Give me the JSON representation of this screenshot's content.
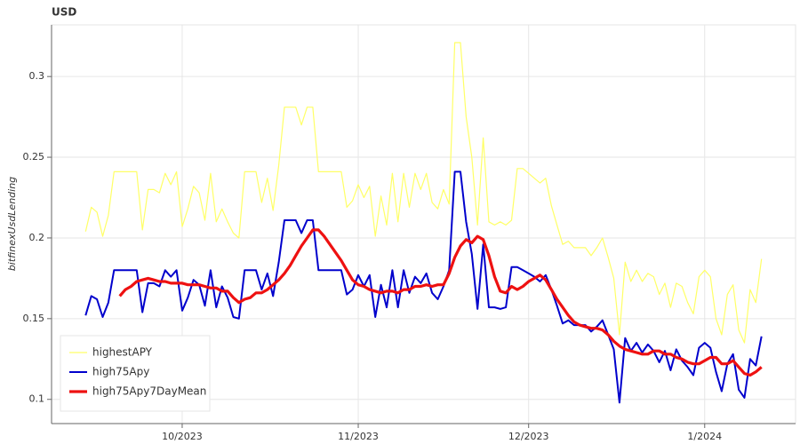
{
  "chart_data": {
    "type": "line",
    "title": "USD",
    "y_label": "bitfinexUsdLending",
    "x": [
      "2023-09-14",
      "2023-09-15",
      "2023-09-16",
      "2023-09-17",
      "2023-09-18",
      "2023-09-19",
      "2023-09-20",
      "2023-09-21",
      "2023-09-22",
      "2023-09-23",
      "2023-09-24",
      "2023-09-25",
      "2023-09-26",
      "2023-09-27",
      "2023-09-28",
      "2023-09-29",
      "2023-09-30",
      "2023-10-01",
      "2023-10-02",
      "2023-10-03",
      "2023-10-04",
      "2023-10-05",
      "2023-10-06",
      "2023-10-07",
      "2023-10-08",
      "2023-10-09",
      "2023-10-10",
      "2023-10-11",
      "2023-10-12",
      "2023-10-13",
      "2023-10-14",
      "2023-10-15",
      "2023-10-16",
      "2023-10-17",
      "2023-10-18",
      "2023-10-19",
      "2023-10-20",
      "2023-10-21",
      "2023-10-22",
      "2023-10-23",
      "2023-10-24",
      "2023-10-25",
      "2023-10-26",
      "2023-10-27",
      "2023-10-28",
      "2023-10-29",
      "2023-10-30",
      "2023-10-31",
      "2023-11-01",
      "2023-11-02",
      "2023-11-03",
      "2023-11-04",
      "2023-11-05",
      "2023-11-06",
      "2023-11-07",
      "2023-11-08",
      "2023-11-09",
      "2023-11-10",
      "2023-11-11",
      "2023-11-12",
      "2023-11-13",
      "2023-11-14",
      "2023-11-15",
      "2023-11-16",
      "2023-11-17",
      "2023-11-18",
      "2023-11-19",
      "2023-11-20",
      "2023-11-21",
      "2023-11-22",
      "2023-11-23",
      "2023-11-24",
      "2023-11-25",
      "2023-11-26",
      "2023-11-27",
      "2023-11-28",
      "2023-11-29",
      "2023-11-30",
      "2023-12-01",
      "2023-12-02",
      "2023-12-03",
      "2023-12-04",
      "2023-12-05",
      "2023-12-06",
      "2023-12-07",
      "2023-12-08",
      "2023-12-09",
      "2023-12-10",
      "2023-12-11",
      "2023-12-12",
      "2023-12-13",
      "2023-12-14",
      "2023-12-15",
      "2023-12-16",
      "2023-12-17",
      "2023-12-18",
      "2023-12-19",
      "2023-12-20",
      "2023-12-21",
      "2023-12-22",
      "2023-12-23",
      "2023-12-24",
      "2023-12-25",
      "2023-12-26",
      "2023-12-27",
      "2023-12-28",
      "2023-12-29",
      "2023-12-30",
      "2023-12-31",
      "2024-01-01",
      "2024-01-02",
      "2024-01-03",
      "2024-01-04",
      "2024-01-05",
      "2024-01-06",
      "2024-01-07",
      "2024-01-08",
      "2024-01-09",
      "2024-01-10",
      "2024-01-11"
    ],
    "series": [
      {
        "name": "highestAPY",
        "color": "#ffff66",
        "width": 1.2,
        "values": [
          0.204,
          0.219,
          0.216,
          0.201,
          0.214,
          0.241,
          0.241,
          0.241,
          0.241,
          0.241,
          0.205,
          0.23,
          0.23,
          0.228,
          0.24,
          0.233,
          0.241,
          0.207,
          0.218,
          0.232,
          0.228,
          0.211,
          0.24,
          0.21,
          0.218,
          0.21,
          0.203,
          0.2,
          0.241,
          0.241,
          0.241,
          0.222,
          0.237,
          0.217,
          0.245,
          0.281,
          0.281,
          0.281,
          0.27,
          0.281,
          0.281,
          0.241,
          0.241,
          0.241,
          0.241,
          0.241,
          0.219,
          0.223,
          0.233,
          0.225,
          0.232,
          0.201,
          0.226,
          0.208,
          0.24,
          0.21,
          0.24,
          0.219,
          0.24,
          0.23,
          0.24,
          0.222,
          0.218,
          0.23,
          0.221,
          0.321,
          0.321,
          0.275,
          0.25,
          0.208,
          0.262,
          0.21,
          0.208,
          0.21,
          0.208,
          0.211,
          0.243,
          0.243,
          0.24,
          0.237,
          0.234,
          0.237,
          0.22,
          0.208,
          0.196,
          0.198,
          0.194,
          0.194,
          0.194,
          0.189,
          0.194,
          0.2,
          0.188,
          0.175,
          0.14,
          0.185,
          0.173,
          0.18,
          0.173,
          0.178,
          0.176,
          0.165,
          0.172,
          0.157,
          0.172,
          0.17,
          0.16,
          0.153,
          0.176,
          0.18,
          0.176,
          0.15,
          0.14,
          0.165,
          0.171,
          0.143,
          0.135,
          0.168,
          0.16,
          0.187
        ]
      },
      {
        "name": "high75Apy",
        "color": "#0000cc",
        "width": 2,
        "values": [
          0.152,
          0.164,
          0.162,
          0.151,
          0.16,
          0.18,
          0.18,
          0.18,
          0.18,
          0.18,
          0.154,
          0.172,
          0.172,
          0.17,
          0.18,
          0.176,
          0.18,
          0.155,
          0.163,
          0.174,
          0.171,
          0.158,
          0.18,
          0.157,
          0.17,
          0.163,
          0.151,
          0.15,
          0.18,
          0.18,
          0.18,
          0.168,
          0.178,
          0.164,
          0.185,
          0.211,
          0.211,
          0.211,
          0.203,
          0.211,
          0.211,
          0.18,
          0.18,
          0.18,
          0.18,
          0.18,
          0.165,
          0.168,
          0.177,
          0.17,
          0.177,
          0.151,
          0.171,
          0.157,
          0.18,
          0.157,
          0.18,
          0.166,
          0.176,
          0.172,
          0.178,
          0.166,
          0.162,
          0.17,
          0.18,
          0.241,
          0.241,
          0.21,
          0.19,
          0.156,
          0.196,
          0.157,
          0.157,
          0.156,
          0.157,
          0.182,
          0.182,
          0.18,
          0.178,
          0.176,
          0.173,
          0.177,
          0.168,
          0.158,
          0.147,
          0.149,
          0.146,
          0.146,
          0.146,
          0.142,
          0.145,
          0.149,
          0.14,
          0.131,
          0.098,
          0.138,
          0.13,
          0.135,
          0.129,
          0.134,
          0.13,
          0.123,
          0.13,
          0.118,
          0.131,
          0.124,
          0.12,
          0.115,
          0.132,
          0.135,
          0.132,
          0.117,
          0.105,
          0.122,
          0.128,
          0.106,
          0.101,
          0.125,
          0.121,
          0.139
        ]
      },
      {
        "name": "high75Apy7DayMean",
        "color": "#ee1111",
        "width": 3.2,
        "values": [
          null,
          null,
          null,
          null,
          null,
          null,
          0.164,
          0.168,
          0.17,
          0.173,
          0.174,
          0.175,
          0.174,
          0.173,
          0.173,
          0.172,
          0.172,
          0.172,
          0.171,
          0.171,
          0.171,
          0.17,
          0.169,
          0.169,
          0.167,
          0.167,
          0.163,
          0.16,
          0.162,
          0.163,
          0.166,
          0.166,
          0.168,
          0.171,
          0.174,
          0.178,
          0.183,
          0.189,
          0.195,
          0.2,
          0.205,
          0.205,
          0.201,
          0.196,
          0.191,
          0.186,
          0.18,
          0.174,
          0.171,
          0.17,
          0.168,
          0.167,
          0.166,
          0.167,
          0.167,
          0.166,
          0.168,
          0.168,
          0.17,
          0.17,
          0.171,
          0.17,
          0.171,
          0.171,
          0.178,
          0.188,
          0.195,
          0.199,
          0.197,
          0.201,
          0.199,
          0.189,
          0.176,
          0.167,
          0.166,
          0.17,
          0.168,
          0.17,
          0.173,
          0.175,
          0.177,
          0.174,
          0.168,
          0.162,
          0.157,
          0.152,
          0.148,
          0.146,
          0.145,
          0.144,
          0.144,
          0.143,
          0.14,
          0.136,
          0.133,
          0.131,
          0.13,
          0.129,
          0.128,
          0.128,
          0.13,
          0.13,
          0.128,
          0.128,
          0.126,
          0.125,
          0.123,
          0.122,
          0.122,
          0.124,
          0.126,
          0.126,
          0.122,
          0.122,
          0.124,
          0.12,
          0.116,
          0.115,
          0.117,
          0.12
        ]
      }
    ],
    "xlim": [
      "2023-09-08",
      "2024-01-17"
    ],
    "xticks": [
      {
        "value": "2023-10-01",
        "label": "10/2023"
      },
      {
        "value": "2023-11-01",
        "label": "11/2023"
      },
      {
        "value": "2023-12-01",
        "label": "12/2023"
      },
      {
        "value": "2024-01-01",
        "label": "1/2024"
      }
    ],
    "ylim": [
      0.085,
      0.332
    ],
    "yticks": [
      0.1,
      0.15,
      0.2,
      0.25,
      0.3
    ],
    "grid": true,
    "legend": "bottom-left"
  }
}
